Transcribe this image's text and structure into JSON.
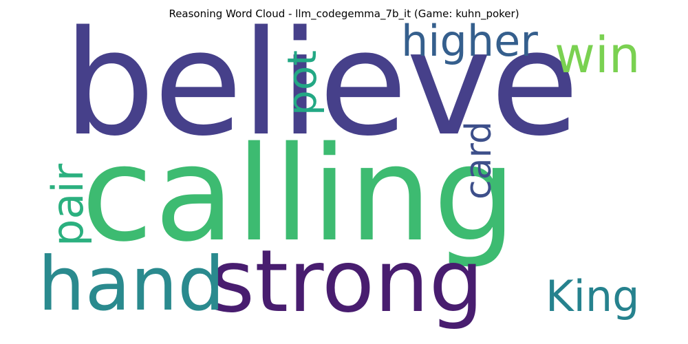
{
  "title": "Reasoning Word Cloud - llm_codegemma_7b_it (Game: kuhn_poker)",
  "words": [
    {
      "text": "believe",
      "color": "#46408a",
      "orientation": "horizontal"
    },
    {
      "text": "calling",
      "color": "#3dbb71",
      "orientation": "horizontal"
    },
    {
      "text": "strong",
      "color": "#481d6f",
      "orientation": "horizontal"
    },
    {
      "text": "hand",
      "color": "#2a8a8e",
      "orientation": "horizontal"
    },
    {
      "text": "higher",
      "color": "#355f8d",
      "orientation": "horizontal"
    },
    {
      "text": "win",
      "color": "#7ad151",
      "orientation": "horizontal"
    },
    {
      "text": "pot",
      "color": "#23a884",
      "orientation": "vertical"
    },
    {
      "text": "card",
      "color": "#3d4f8a",
      "orientation": "vertical"
    },
    {
      "text": "pair",
      "color": "#2bb07f",
      "orientation": "vertical"
    },
    {
      "text": "King",
      "color": "#26828e",
      "orientation": "horizontal"
    }
  ]
}
